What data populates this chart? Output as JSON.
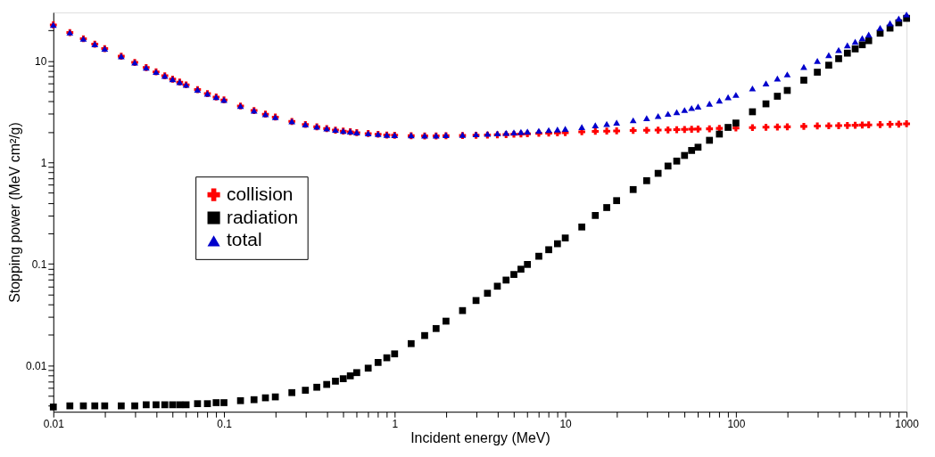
{
  "chart_data": {
    "type": "scatter",
    "xlabel": "Incident energy (MeV)",
    "ylabel": "Stopping power (MeV cm²/g)",
    "log": "xy",
    "grid": false,
    "legend": "left",
    "x": [
      0.01,
      0.0125,
      0.015,
      0.0175,
      0.02,
      0.025,
      0.03,
      0.035,
      0.04,
      0.045,
      0.05,
      0.055,
      0.06,
      0.07,
      0.08,
      0.09,
      0.1,
      0.125,
      0.15,
      0.175,
      0.2,
      0.25,
      0.3,
      0.35,
      0.4,
      0.45,
      0.5,
      0.55,
      0.6,
      0.7,
      0.8,
      0.9,
      1,
      1.25,
      1.5,
      1.75,
      2,
      2.5,
      3,
      3.5,
      4,
      4.5,
      5,
      5.5,
      6,
      7,
      8,
      9,
      10,
      12.5,
      15,
      17.5,
      20,
      25,
      30,
      35,
      40,
      45,
      50,
      55,
      60,
      70,
      80,
      90,
      100,
      125,
      150,
      175,
      200,
      250,
      300,
      350,
      400,
      450,
      500,
      550,
      600,
      700,
      800,
      900,
      1000
    ],
    "xlim": [
      0.01,
      1000
    ],
    "xticks": [
      0.01,
      {
        "value": 0.02,
        "label": null
      },
      {
        "value": 0.03,
        "label": null
      },
      {
        "value": 0.04,
        "label": null
      },
      {
        "value": 0.05,
        "label": null
      },
      {
        "value": 0.06,
        "label": null
      },
      {
        "value": 0.07,
        "label": null
      },
      {
        "value": 0.08,
        "label": null
      },
      {
        "value": 0.09,
        "label": null
      },
      0.1,
      {
        "value": 0.2,
        "label": null
      },
      {
        "value": 0.3,
        "label": null
      },
      {
        "value": 0.4,
        "label": null
      },
      {
        "value": 0.5,
        "label": null
      },
      {
        "value": 0.6,
        "label": null
      },
      {
        "value": 0.7,
        "label": null
      },
      {
        "value": 0.8,
        "label": null
      },
      {
        "value": 0.9,
        "label": null
      },
      1,
      {
        "value": 2,
        "label": null
      },
      {
        "value": 3,
        "label": null
      },
      {
        "value": 4,
        "label": null
      },
      {
        "value": 5,
        "label": null
      },
      {
        "value": 6,
        "label": null
      },
      {
        "value": 7,
        "label": null
      },
      {
        "value": 8,
        "label": null
      },
      {
        "value": 9,
        "label": null
      },
      10,
      {
        "value": 20,
        "label": null
      },
      {
        "value": 30,
        "label": null
      },
      {
        "value": 40,
        "label": null
      },
      {
        "value": 50,
        "label": null
      },
      {
        "value": 60,
        "label": null
      },
      {
        "value": 70,
        "label": null
      },
      {
        "value": 80,
        "label": null
      },
      {
        "value": 90,
        "label": null
      },
      100,
      {
        "value": 200,
        "label": null
      },
      {
        "value": 300,
        "label": null
      },
      {
        "value": 400,
        "label": null
      },
      {
        "value": 500,
        "label": null
      },
      {
        "value": 600,
        "label": null
      },
      {
        "value": 700,
        "label": null
      },
      {
        "value": 800,
        "label": null
      },
      {
        "value": 900,
        "label": null
      },
      1000
    ],
    "ylim": [
      0.0035,
      30
    ],
    "yticks": [
      {
        "value": 0.004,
        "label": null
      },
      {
        "value": 0.005,
        "label": null
      },
      {
        "value": 0.006,
        "label": null
      },
      {
        "value": 0.007,
        "label": null
      },
      {
        "value": 0.008,
        "label": null
      },
      {
        "value": 0.009,
        "label": null
      },
      0.01,
      {
        "value": 0.02,
        "label": null
      },
      {
        "value": 0.03,
        "label": null
      },
      {
        "value": 0.04,
        "label": null
      },
      {
        "value": 0.05,
        "label": null
      },
      {
        "value": 0.06,
        "label": null
      },
      {
        "value": 0.07,
        "label": null
      },
      {
        "value": 0.08,
        "label": null
      },
      {
        "value": 0.09,
        "label": null
      },
      0.1,
      {
        "value": 0.2,
        "label": null
      },
      {
        "value": 0.3,
        "label": null
      },
      {
        "value": 0.4,
        "label": null
      },
      {
        "value": 0.5,
        "label": null
      },
      {
        "value": 0.6,
        "label": null
      },
      {
        "value": 0.7,
        "label": null
      },
      {
        "value": 0.8,
        "label": null
      },
      {
        "value": 0.9,
        "label": null
      },
      1,
      {
        "value": 2,
        "label": null
      },
      {
        "value": 3,
        "label": null
      },
      {
        "value": 4,
        "label": null
      },
      {
        "value": 5,
        "label": null
      },
      {
        "value": 6,
        "label": null
      },
      {
        "value": 7,
        "label": null
      },
      {
        "value": 8,
        "label": null
      },
      {
        "value": 9,
        "label": null
      },
      10,
      {
        "value": 20,
        "label": null
      }
    ],
    "series": [
      {
        "name": "collision",
        "color": "#ff0000",
        "marker": "cross",
        "values": [
          22.6,
          19.0,
          16.5,
          14.6,
          13.2,
          11.1,
          9.65,
          8.59,
          7.78,
          7.13,
          6.6,
          6.17,
          5.8,
          5.21,
          4.76,
          4.4,
          4.12,
          3.59,
          3.24,
          2.98,
          2.79,
          2.53,
          2.36,
          2.24,
          2.15,
          2.08,
          2.03,
          2.0,
          1.96,
          1.92,
          1.89,
          1.86,
          1.85,
          1.83,
          1.82,
          1.82,
          1.83,
          1.84,
          1.85,
          1.86,
          1.87,
          1.88,
          1.89,
          1.9,
          1.91,
          1.93,
          1.94,
          1.95,
          1.96,
          2.0,
          2.02,
          2.03,
          2.04,
          2.06,
          2.07,
          2.08,
          2.09,
          2.1,
          2.11,
          2.12,
          2.13,
          2.14,
          2.16,
          null,
          2.18,
          2.2,
          2.22,
          2.23,
          2.24,
          2.26,
          2.28,
          2.29,
          2.3,
          2.31,
          2.32,
          2.33,
          2.34,
          2.35,
          2.37,
          2.38,
          2.4
        ]
      },
      {
        "name": "radiation",
        "color": "#000000",
        "marker": "square",
        "values": [
          0.0039,
          0.004,
          0.004,
          0.004,
          0.004,
          0.004,
          0.004,
          0.0041,
          0.0041,
          0.0041,
          0.0041,
          0.0041,
          0.0041,
          0.0042,
          0.0042,
          0.0043,
          0.0043,
          0.0045,
          0.0046,
          0.0048,
          0.0049,
          0.0054,
          0.0057,
          0.0061,
          0.0065,
          0.007,
          0.0074,
          0.0079,
          0.0085,
          0.0094,
          0.0107,
          0.0119,
          0.013,
          0.0164,
          0.0197,
          0.0231,
          0.0273,
          0.0347,
          0.0436,
          0.0514,
          0.0603,
          0.0693,
          0.0787,
          0.0887,
          0.0988,
          0.119,
          0.138,
          0.158,
          0.18,
          0.231,
          0.3,
          0.359,
          0.42,
          0.54,
          0.66,
          0.78,
          0.92,
          1.03,
          1.17,
          1.31,
          1.41,
          1.65,
          1.9,
          2.21,
          2.44,
          3.15,
          3.77,
          4.48,
          5.11,
          6.45,
          7.73,
          9.06,
          10.5,
          11.9,
          13.1,
          14.4,
          15.8,
          18.7,
          21.0,
          23.7,
          26.2
        ]
      },
      {
        "name": "total",
        "color": "#0000cc",
        "marker": "triangle",
        "values": [
          22.6,
          19.0,
          16.5,
          14.6,
          13.2,
          11.1,
          9.65,
          8.59,
          7.78,
          7.13,
          6.6,
          6.17,
          5.8,
          5.21,
          4.76,
          4.4,
          4.12,
          3.59,
          3.24,
          2.98,
          2.79,
          2.54,
          2.37,
          2.25,
          2.16,
          2.09,
          2.04,
          2.01,
          1.97,
          1.93,
          1.9,
          1.87,
          1.86,
          1.85,
          1.84,
          1.84,
          1.86,
          1.87,
          1.89,
          1.91,
          1.93,
          1.95,
          1.97,
          1.99,
          2.01,
          2.05,
          2.08,
          2.11,
          2.14,
          2.23,
          2.32,
          2.39,
          2.46,
          2.6,
          2.73,
          2.86,
          3.01,
          3.13,
          3.28,
          3.43,
          3.54,
          3.79,
          4.06,
          4.38,
          4.62,
          5.35,
          5.99,
          6.71,
          7.35,
          8.71,
          10.0,
          11.4,
          12.8,
          14.2,
          15.4,
          16.7,
          18.1,
          21.1,
          23.4,
          26.1,
          28.6
        ]
      }
    ]
  }
}
